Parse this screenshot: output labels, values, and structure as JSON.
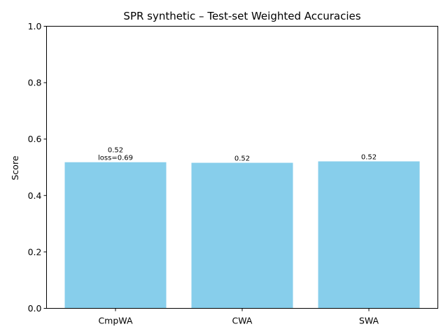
{
  "chart_data": {
    "type": "bar",
    "title": "SPR synthetic – Test-set Weighted Accuracies",
    "xlabel": "",
    "ylabel": "Score",
    "ylim": [
      0,
      1.0
    ],
    "yticks": [
      "0.0",
      "0.2",
      "0.4",
      "0.6",
      "0.8",
      "1.0"
    ],
    "categories": [
      "CmpWA",
      "CWA",
      "SWA"
    ],
    "values": [
      0.518,
      0.516,
      0.521
    ],
    "data_labels": [
      [
        "0.52",
        "loss=0.69"
      ],
      [
        "0.52"
      ],
      [
        "0.52"
      ]
    ],
    "bar_color": "#87ceeb",
    "grid": false,
    "legend": "none"
  }
}
